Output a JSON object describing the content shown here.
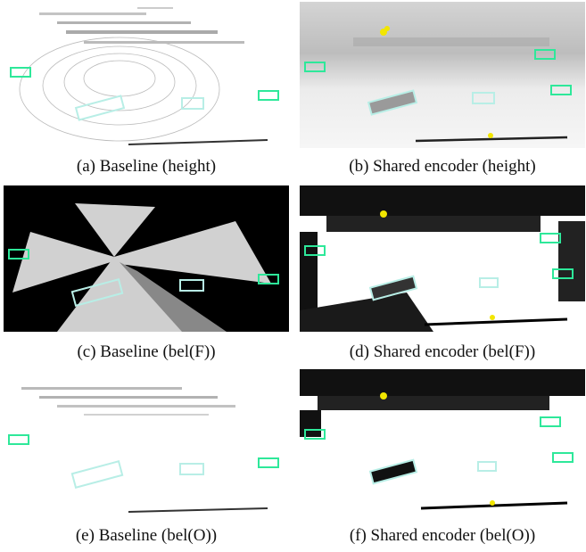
{
  "figure": {
    "panels": [
      {
        "id": "a",
        "caption": "(a) Baseline (height)",
        "variant": "baseline",
        "map": "height"
      },
      {
        "id": "b",
        "caption": "(b) Shared encoder (height)",
        "variant": "encoder",
        "map": "height"
      },
      {
        "id": "c",
        "caption": "(c) Baseline (bel(F))",
        "variant": "baseline",
        "map": "belF"
      },
      {
        "id": "d",
        "caption": "(d) Shared encoder (bel(F))",
        "variant": "encoder",
        "map": "belF"
      },
      {
        "id": "e",
        "caption": "(e) Baseline (bel(O))",
        "variant": "baseline",
        "map": "belO"
      },
      {
        "id": "f",
        "caption": "(f) Shared encoder (bel(O))",
        "variant": "encoder",
        "map": "belO"
      }
    ]
  },
  "colors": {
    "vehicle_box": "#2ee89a",
    "highlighted_box": "#b8eee6",
    "pedestrian_marker": "#f2e600",
    "background_white": "#ffffff",
    "background_black": "#000000"
  }
}
